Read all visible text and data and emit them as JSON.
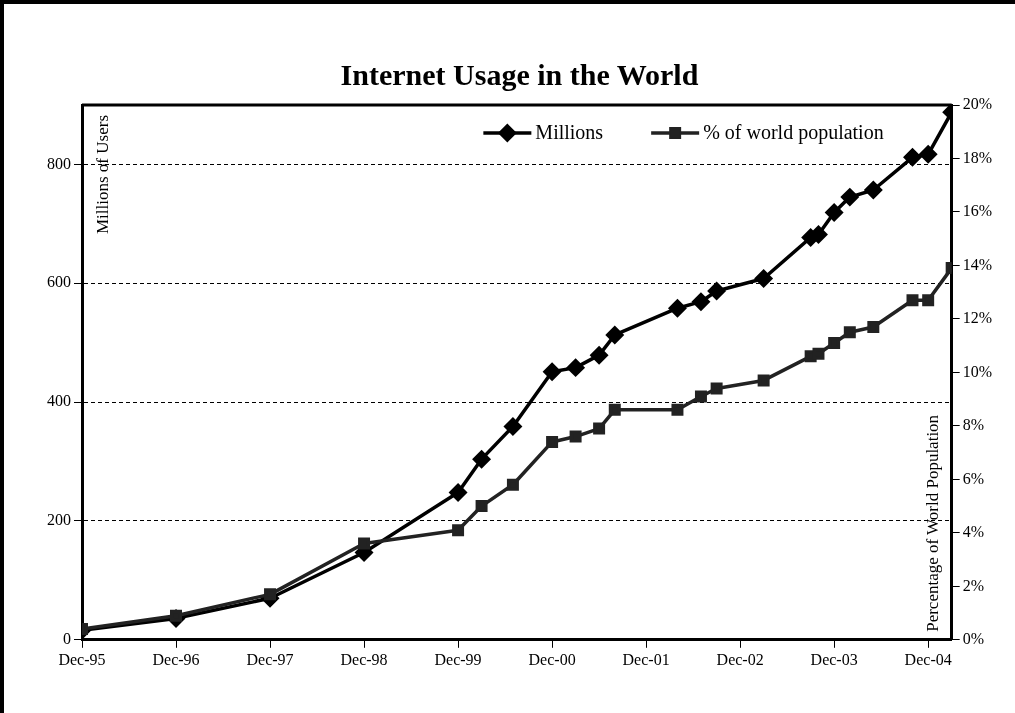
{
  "chart_data": {
    "type": "line",
    "title": "Internet Usage in the World",
    "ylabel": "Millions of Users",
    "y2label": "Percentage of World Population",
    "x": [
      "1995-12",
      "1996-12",
      "1997-12",
      "1998-12",
      "1999-12",
      "2000-03",
      "2000-07",
      "2000-12",
      "2001-03",
      "2001-06",
      "2001-08",
      "2002-04",
      "2002-07",
      "2002-09",
      "2003-03",
      "2003-09",
      "2003-10",
      "2003-12",
      "2004-02",
      "2004-05",
      "2004-10",
      "2004-12",
      "2005-03"
    ],
    "series": [
      {
        "name": "Millions",
        "color": "#000000",
        "marker": "diamond",
        "values": [
          16,
          36,
          70,
          147,
          248,
          304,
          359,
          451,
          458,
          479,
          513,
          558,
          569,
          587,
          608,
          677,
          682,
          719,
          745,
          757,
          812,
          817,
          888
        ]
      },
      {
        "name": "% of world population",
        "color": "#222222",
        "marker": "square",
        "axis": "y2",
        "values": [
          0.4,
          0.9,
          1.7,
          3.6,
          4.1,
          5.0,
          5.8,
          7.4,
          7.6,
          7.9,
          8.6,
          8.6,
          9.1,
          9.4,
          9.7,
          10.6,
          10.7,
          11.1,
          11.5,
          11.7,
          12.7,
          12.7,
          13.9
        ]
      }
    ],
    "xlim": [
      "1995-12",
      "2005-03"
    ],
    "xticks": [
      {
        "value": "1995-12",
        "label": "Dec-95"
      },
      {
        "value": "1996-12",
        "label": "Dec-96"
      },
      {
        "value": "1997-12",
        "label": "Dec-97"
      },
      {
        "value": "1998-12",
        "label": "Dec-98"
      },
      {
        "value": "1999-12",
        "label": "Dec-99"
      },
      {
        "value": "2000-12",
        "label": "Dec-00"
      },
      {
        "value": "2001-12",
        "label": "Dec-01"
      },
      {
        "value": "2002-12",
        "label": "Dec-02"
      },
      {
        "value": "2003-12",
        "label": "Dec-03"
      },
      {
        "value": "2004-12",
        "label": "Dec-04"
      }
    ],
    "ylim": [
      0,
      900
    ],
    "yticks": [
      0,
      200,
      400,
      600,
      800
    ],
    "y2lim": [
      0,
      20
    ],
    "y2ticks": [
      {
        "value": 0,
        "label": "0%"
      },
      {
        "value": 2,
        "label": "2%"
      },
      {
        "value": 4,
        "label": "4%"
      },
      {
        "value": 6,
        "label": "6%"
      },
      {
        "value": 8,
        "label": "8%"
      },
      {
        "value": 10,
        "label": "10%"
      },
      {
        "value": 12,
        "label": "12%"
      },
      {
        "value": 14,
        "label": "14%"
      },
      {
        "value": 16,
        "label": "16%"
      },
      {
        "value": 18,
        "label": "18%"
      },
      {
        "value": 20,
        "label": "20%"
      }
    ],
    "grid": "y",
    "legend": "top right",
    "line_style": "solid"
  }
}
